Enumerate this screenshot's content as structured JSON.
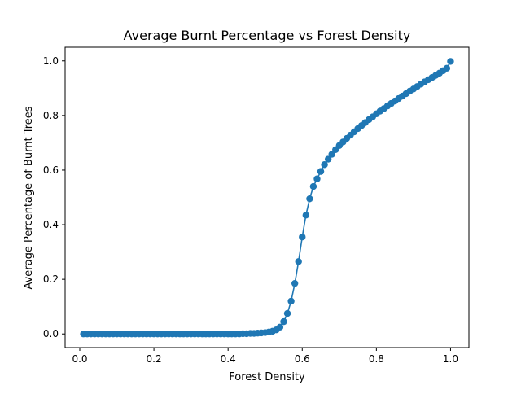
{
  "chart_data": {
    "type": "line",
    "title": "Average Burnt Percentage vs Forest Density",
    "xlabel": "Forest Density",
    "ylabel": "Average Percentage of Burnt Trees",
    "xlim": [
      -0.0395,
      1.0495
    ],
    "ylim": [
      -0.05,
      1.05
    ],
    "xticks": [
      0.0,
      0.2,
      0.4,
      0.6,
      0.8,
      1.0
    ],
    "xtick_labels": [
      "0.0",
      "0.2",
      "0.4",
      "0.6",
      "0.8",
      "1.0"
    ],
    "yticks": [
      0.0,
      0.2,
      0.4,
      0.6,
      0.8,
      1.0
    ],
    "ytick_labels": [
      "0.0",
      "0.2",
      "0.4",
      "0.6",
      "0.8",
      "1.0"
    ],
    "grid": false,
    "legend": false,
    "series": [
      {
        "color": "#1f77b4",
        "marker": "circle",
        "x": [
          0.01,
          0.02,
          0.03,
          0.04,
          0.05,
          0.06,
          0.07,
          0.08,
          0.09,
          0.1,
          0.11,
          0.12,
          0.13,
          0.14,
          0.15,
          0.16,
          0.17,
          0.18,
          0.19,
          0.2,
          0.21,
          0.22,
          0.23,
          0.24,
          0.25,
          0.26,
          0.27,
          0.28,
          0.29,
          0.3,
          0.31,
          0.32,
          0.33,
          0.34,
          0.35,
          0.36,
          0.37,
          0.38,
          0.39,
          0.4,
          0.41,
          0.42,
          0.43,
          0.44,
          0.45,
          0.46,
          0.47,
          0.48,
          0.49,
          0.5,
          0.51,
          0.52,
          0.53,
          0.54,
          0.55,
          0.56,
          0.57,
          0.58,
          0.59,
          0.6,
          0.61,
          0.62,
          0.63,
          0.64,
          0.65,
          0.66,
          0.67,
          0.68,
          0.69,
          0.7,
          0.71,
          0.72,
          0.73,
          0.74,
          0.75,
          0.76,
          0.77,
          0.78,
          0.79,
          0.8,
          0.81,
          0.82,
          0.83,
          0.84,
          0.85,
          0.86,
          0.87,
          0.88,
          0.89,
          0.9,
          0.91,
          0.92,
          0.93,
          0.94,
          0.95,
          0.96,
          0.97,
          0.98,
          0.99,
          1.0
        ],
        "y": [
          0.0,
          0.0,
          0.0,
          0.0,
          0.0,
          0.0,
          0.0,
          0.0,
          0.0,
          0.0,
          0.0,
          0.0,
          0.0,
          0.0,
          0.0,
          0.0,
          0.0,
          0.0,
          0.0,
          0.0,
          0.0,
          0.0,
          0.0,
          0.0,
          0.0,
          0.0,
          0.0,
          0.0,
          0.0,
          0.0,
          0.0,
          0.0,
          0.0,
          0.0,
          0.0,
          0.0,
          0.0,
          0.0,
          0.0,
          0.0,
          0.0,
          0.0,
          0.0,
          0.001,
          0.001,
          0.002,
          0.002,
          0.003,
          0.004,
          0.005,
          0.007,
          0.01,
          0.015,
          0.025,
          0.045,
          0.075,
          0.12,
          0.185,
          0.265,
          0.355,
          0.435,
          0.495,
          0.54,
          0.568,
          0.595,
          0.62,
          0.64,
          0.658,
          0.675,
          0.69,
          0.703,
          0.716,
          0.728,
          0.74,
          0.752,
          0.763,
          0.774,
          0.785,
          0.795,
          0.806,
          0.816,
          0.825,
          0.835,
          0.844,
          0.853,
          0.862,
          0.871,
          0.88,
          0.889,
          0.897,
          0.906,
          0.915,
          0.923,
          0.931,
          0.939,
          0.947,
          0.955,
          0.964,
          0.973,
          0.998
        ]
      }
    ]
  }
}
